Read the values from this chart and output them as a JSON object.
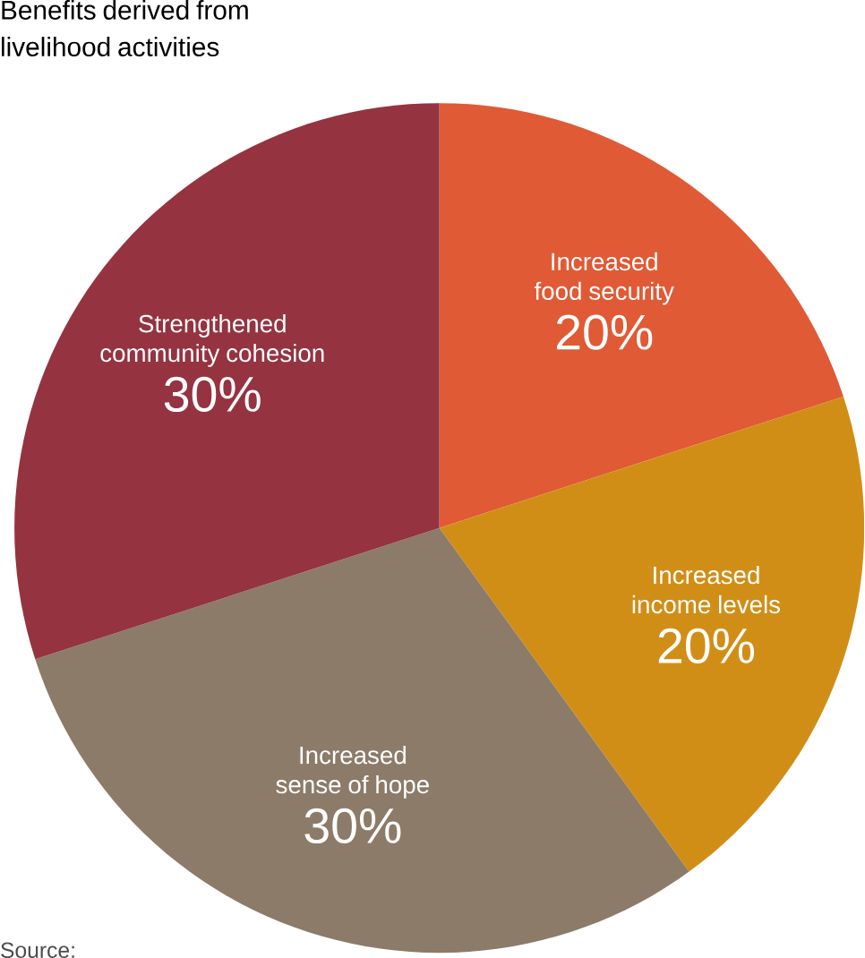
{
  "chart_data": {
    "type": "pie",
    "title": "Benefits derived from livelihood activities",
    "categories": [
      "Increased food security",
      "Increased income levels",
      "Increased sense of hope",
      "Strengthened community cohesion"
    ],
    "values": [
      20,
      20,
      30,
      30
    ],
    "value_labels": [
      "20%",
      "20%",
      "30%",
      "30%"
    ],
    "colors": [
      "#e05a35",
      "#d18e17",
      "#8c7b69",
      "#953341"
    ],
    "annotations": [
      "Source:"
    ]
  }
}
